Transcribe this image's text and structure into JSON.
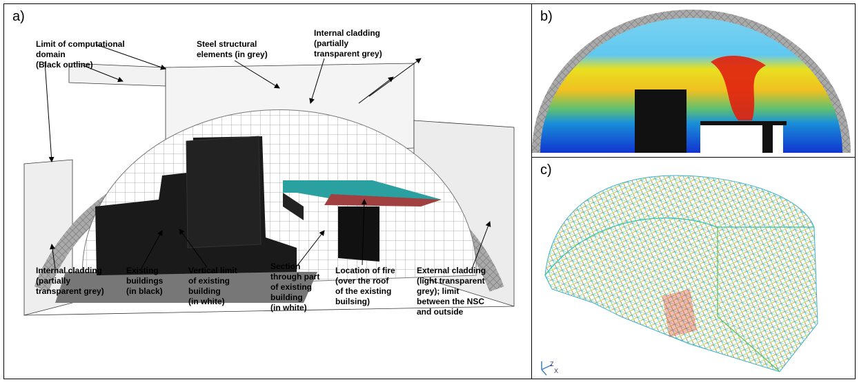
{
  "panels": [
    {
      "label": "a)",
      "annotations": [
        {
          "lines": [
            "Limit of computational",
            "domain",
            "(Black outline)"
          ]
        },
        {
          "lines": [
            "Steel structural",
            "elements (in grey)"
          ]
        },
        {
          "lines": [
            "Internal cladding",
            "(partially",
            "transparent grey)"
          ]
        },
        {
          "lines": [
            "Internal cladding",
            "(partially",
            "transparent grey)"
          ]
        },
        {
          "lines": [
            "Existing",
            "buildings",
            "(in black)"
          ]
        },
        {
          "lines": [
            "Vertical limit",
            "of existing",
            "building",
            "(in white)"
          ]
        },
        {
          "lines": [
            "Section",
            "through part",
            "of  existing",
            "building",
            "(in white)"
          ]
        },
        {
          "lines": [
            "Location of fire",
            "(over the roof",
            "of the existing",
            "builsing)"
          ]
        },
        {
          "lines": [
            "External cladding",
            "(light transparent",
            "grey); limit",
            "between the NSC",
            "and outside"
          ]
        }
      ]
    },
    {
      "label": "b)"
    },
    {
      "label": "c)",
      "axes": [
        "Z",
        "X"
      ]
    }
  ]
}
